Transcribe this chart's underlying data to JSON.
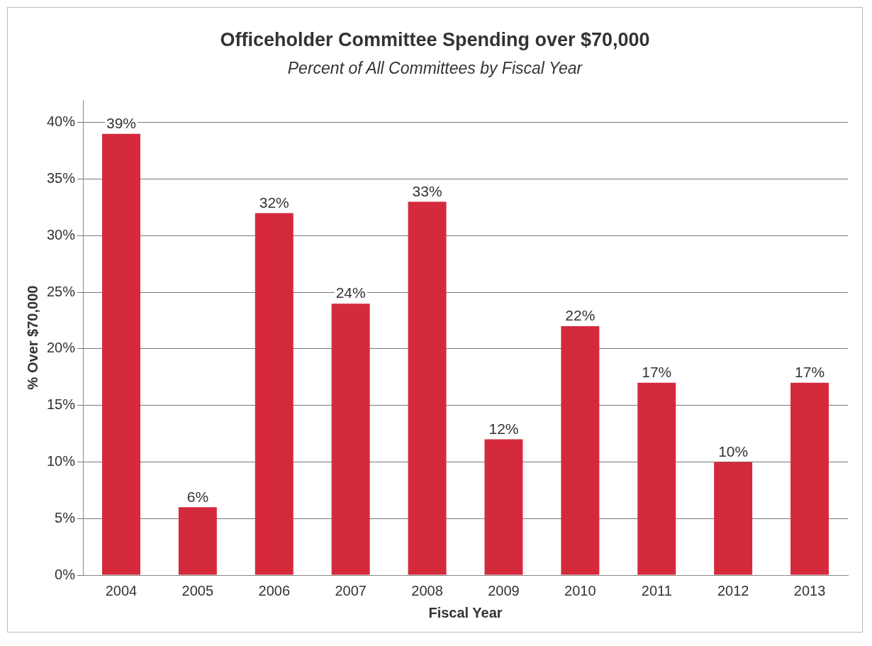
{
  "chart_data": {
    "type": "bar",
    "title": "Officeholder Committee Spending over $70,000",
    "subtitle": "Percent of All Committees by Fiscal Year",
    "xlabel": "Fiscal Year",
    "ylabel": "% Over $70,000",
    "categories": [
      "2004",
      "2005",
      "2006",
      "2007",
      "2008",
      "2009",
      "2010",
      "2011",
      "2012",
      "2013"
    ],
    "values": [
      39,
      6,
      32,
      24,
      33,
      12,
      22,
      17,
      10,
      17
    ],
    "value_labels": [
      "39%",
      "6%",
      "32%",
      "24%",
      "33%",
      "12%",
      "22%",
      "17%",
      "10%",
      "17%"
    ],
    "color": "#d42a3c",
    "ylim": [
      0,
      42
    ],
    "yticks": [
      {
        "value": 0,
        "label": "0%"
      },
      {
        "value": 5,
        "label": "5%"
      },
      {
        "value": 10,
        "label": "10%"
      },
      {
        "value": 15,
        "label": "15%"
      },
      {
        "value": 20,
        "label": "20%"
      },
      {
        "value": 25,
        "label": "25%"
      },
      {
        "value": 30,
        "label": "30%"
      },
      {
        "value": 35,
        "label": "35%"
      },
      {
        "value": 40,
        "label": "40%"
      }
    ],
    "grid": "y",
    "legend": false
  }
}
